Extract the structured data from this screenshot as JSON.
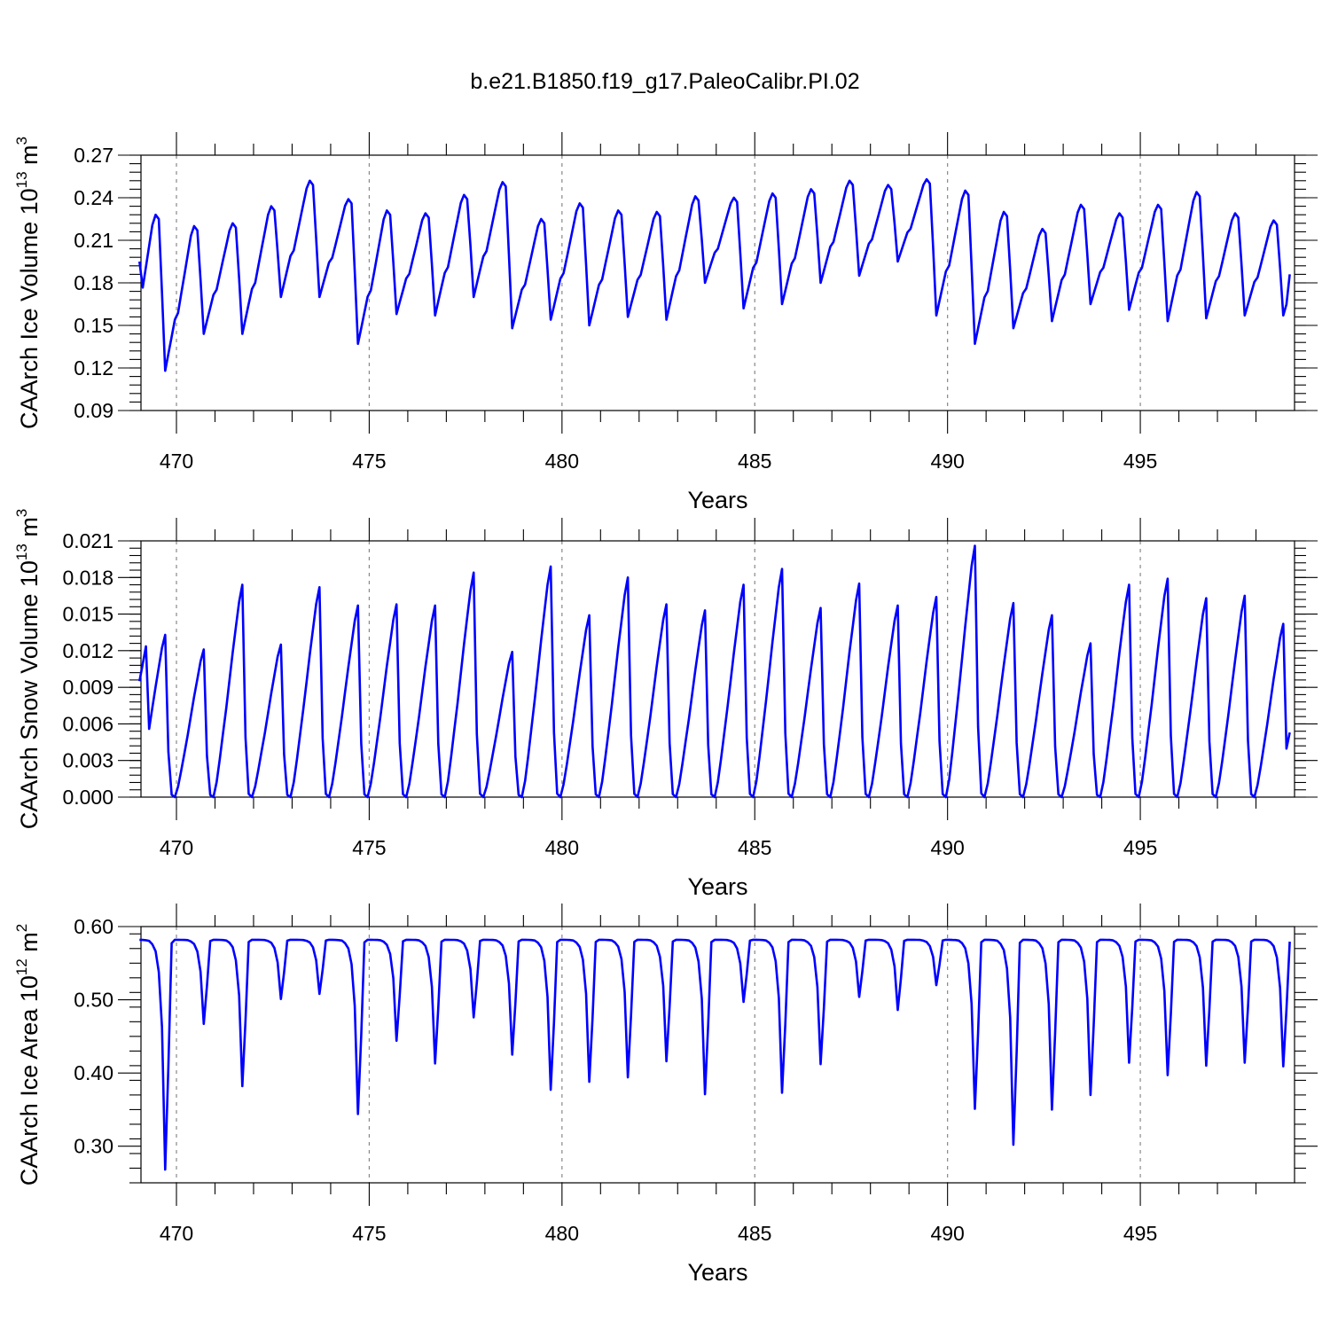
{
  "figure": {
    "title": "b.e21.B1850.f19_g17.PaleoCalibr.PI.02",
    "line_color": "#0000ff"
  },
  "chart_data": [
    {
      "type": "line",
      "name": "ice-volume",
      "title": "b.e21.B1850.f19_g17.PaleoCalibr.PI.02",
      "ylabel_main": "CAArch Ice Volume 10",
      "ylabel_exp": "13",
      "ylabel_unit": " m",
      "ylabel_unit_exp": "3",
      "xlabel": "Years",
      "xlim": [
        469.08,
        499.0
      ],
      "ylim": [
        0.09,
        0.27
      ],
      "yticks": [
        "0.09",
        "0.12",
        "0.15",
        "0.18",
        "0.21",
        "0.24",
        "0.27"
      ],
      "xticks": [
        "470",
        "475",
        "480",
        "485",
        "490",
        "495"
      ],
      "grid_years": [
        470,
        475,
        480,
        485,
        490,
        495
      ],
      "series": [
        {
          "name": "CAArch Ice Volume",
          "x_start": 469.0417,
          "x_step": 0.0833333,
          "minima": [
            0.118,
            0.144,
            0.144,
            0.17,
            0.17,
            0.137,
            0.158,
            0.157,
            0.17,
            0.148,
            0.154,
            0.15,
            0.156,
            0.154,
            0.18,
            0.162,
            0.165,
            0.18,
            0.185,
            0.195,
            0.157,
            0.137,
            0.148,
            0.153,
            0.165,
            0.161,
            0.153,
            0.155,
            0.157
          ],
          "maxima": [
            0.228,
            0.22,
            0.222,
            0.234,
            0.252,
            0.239,
            0.231,
            0.229,
            0.242,
            0.251,
            0.225,
            0.236,
            0.231,
            0.23,
            0.241,
            0.24,
            0.243,
            0.246,
            0.252,
            0.249,
            0.253,
            0.245,
            0.23,
            0.218,
            0.235,
            0.229,
            0.235,
            0.244,
            0.229,
            0.224
          ]
        }
      ]
    },
    {
      "type": "line",
      "name": "snow-volume",
      "ylabel_main": "CAArch Snow Volume 10",
      "ylabel_exp": "13",
      "ylabel_unit": " m",
      "ylabel_unit_exp": "3",
      "xlabel": "Years",
      "xlim": [
        469.08,
        499.0
      ],
      "ylim": [
        0.0,
        0.021
      ],
      "yticks": [
        "0.000",
        "0.003",
        "0.006",
        "0.009",
        "0.012",
        "0.015",
        "0.018",
        "0.021"
      ],
      "xticks": [
        "470",
        "475",
        "480",
        "485",
        "490",
        "495"
      ],
      "grid_years": [
        470,
        475,
        480,
        485,
        490,
        495
      ],
      "series": [
        {
          "name": "CAArch Snow Volume",
          "x_start": 469.0417,
          "x_step": 0.0833333,
          "peaks": [
            0.0133,
            0.0121,
            0.0174,
            0.0125,
            0.0172,
            0.0157,
            0.0158,
            0.0157,
            0.0184,
            0.0119,
            0.0189,
            0.0149,
            0.018,
            0.0158,
            0.0153,
            0.0174,
            0.0187,
            0.0155,
            0.0175,
            0.0157,
            0.0164,
            0.0206,
            0.0159,
            0.0149,
            0.0126,
            0.0174,
            0.0179,
            0.0163,
            0.0165,
            0.0142
          ],
          "start_value": 0.0095,
          "end_value": 0.0053
        }
      ]
    },
    {
      "type": "line",
      "name": "ice-area",
      "ylabel_main": "CAArch Ice Area 10",
      "ylabel_exp": "12",
      "ylabel_unit": " m",
      "ylabel_unit_exp": "2",
      "xlabel": "Years",
      "xlim": [
        469.08,
        499.0
      ],
      "ylim": [
        0.25,
        0.6
      ],
      "yticks": [
        "0.30",
        "0.40",
        "0.50",
        "0.60"
      ],
      "ytick_values": [
        0.3,
        0.4,
        0.5,
        0.6
      ],
      "xticks": [
        "470",
        "475",
        "480",
        "485",
        "490",
        "495"
      ],
      "grid_years": [
        470,
        475,
        480,
        485,
        490,
        495
      ],
      "series": [
        {
          "name": "CAArch Ice Area",
          "x_start": 469.0417,
          "x_step": 0.0833333,
          "plateau": 0.582,
          "minima": [
            0.268,
            0.467,
            0.382,
            0.501,
            0.508,
            0.344,
            0.444,
            0.413,
            0.476,
            0.425,
            0.377,
            0.388,
            0.394,
            0.416,
            0.371,
            0.497,
            0.373,
            0.412,
            0.504,
            0.486,
            0.52,
            0.351,
            0.302,
            0.35,
            0.37,
            0.414,
            0.397,
            0.41,
            0.414,
            0.409
          ]
        }
      ]
    }
  ]
}
